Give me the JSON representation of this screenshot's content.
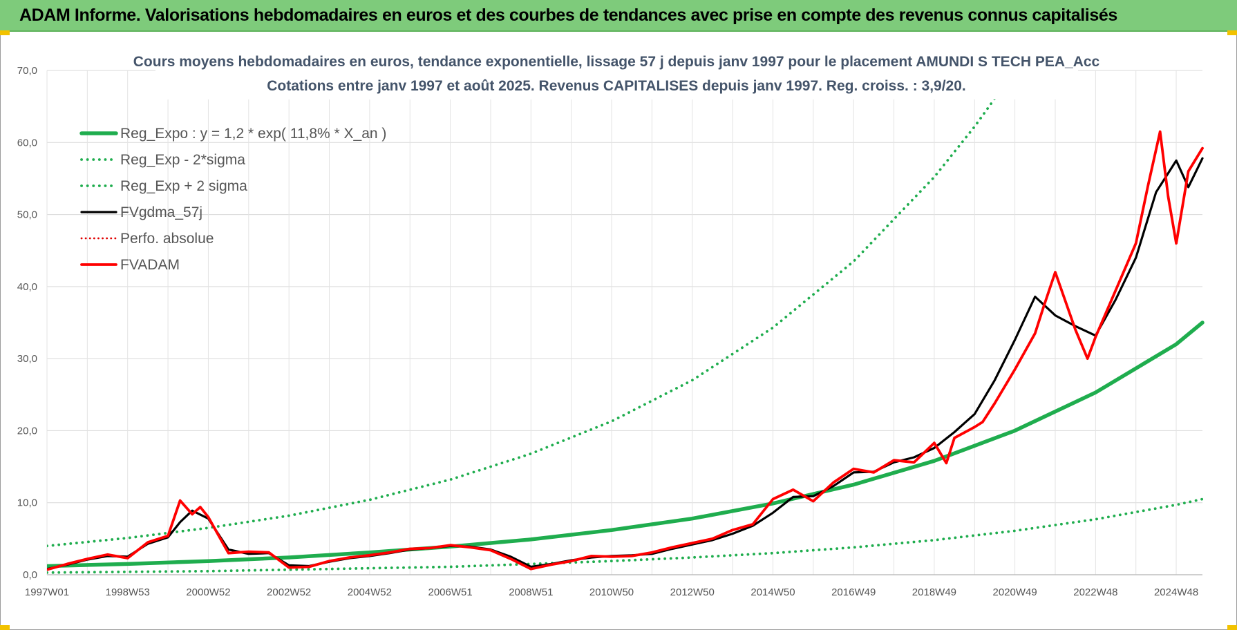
{
  "header": {
    "title": "ADAM Informe. Valorisations hebdomadaires en euros et des courbes de tendances avec prise en compte des revenus connus capitalisés"
  },
  "colors": {
    "banner": "#7ecb7b",
    "reg_expo": "#1fad4e",
    "sigma": "#1fad4e",
    "fvgdma": "#000000",
    "perfo": "#e00000",
    "fvadam": "#ff0000",
    "title": "#44546a"
  },
  "chart_data": {
    "type": "line",
    "title_line1": "Cours moyens hebdomadaires en euros, tendance exponentielle, lissage 57 j depuis janv 1997 pour le placement AMUNDI S TECH PEA_Acc",
    "title_line2": "Cotations entre janv 1997 et août 2025. Revenus CAPITALISES depuis janv 1997. Reg. croiss. : 3,9/20.",
    "xlabel": "",
    "ylabel": "",
    "ylim": [
      0,
      70
    ],
    "xlim": [
      1997.0,
      2025.65
    ],
    "grid": true,
    "legend_position": "top-left",
    "y_ticks": [
      "0,0",
      "10,0",
      "20,0",
      "30,0",
      "40,0",
      "50,0",
      "60,0",
      "70,0"
    ],
    "x_ticks": [
      {
        "label": "1997W01",
        "x": 1997.0
      },
      {
        "label": "1998W53",
        "x": 1999.0
      },
      {
        "label": "2000W52",
        "x": 2001.0
      },
      {
        "label": "2002W52",
        "x": 2003.0
      },
      {
        "label": "2004W52",
        "x": 2005.0
      },
      {
        "label": "2006W51",
        "x": 2007.0
      },
      {
        "label": "2008W51",
        "x": 2009.0
      },
      {
        "label": "2010W50",
        "x": 2011.0
      },
      {
        "label": "2012W50",
        "x": 2013.0
      },
      {
        "label": "2014W50",
        "x": 2015.0
      },
      {
        "label": "2016W49",
        "x": 2017.0
      },
      {
        "label": "2018W49",
        "x": 2019.0
      },
      {
        "label": "2020W49",
        "x": 2021.0
      },
      {
        "label": "2022W48",
        "x": 2023.0
      },
      {
        "label": "2024W48",
        "x": 2025.0
      }
    ],
    "series": [
      {
        "name": "Reg_Expo : y = 1,2 * exp( 11,8% *  X_an )",
        "style": "solid-thick",
        "x": [
          1997.0,
          1999.0,
          2001.0,
          2003.0,
          2005.0,
          2007.0,
          2009.0,
          2011.0,
          2013.0,
          2015.0,
          2017.0,
          2019.0,
          2021.0,
          2023.0,
          2025.0,
          2025.65
        ],
        "y": [
          1.2,
          1.5,
          1.9,
          2.4,
          3.1,
          3.9,
          4.9,
          6.2,
          7.8,
          9.9,
          12.5,
          15.8,
          20.0,
          25.3,
          32.0,
          35.0
        ]
      },
      {
        "name": "Reg_Exp - 2*sigma",
        "style": "dotted",
        "x": [
          1997.0,
          1999.0,
          2001.0,
          2003.0,
          2005.0,
          2007.0,
          2009.0,
          2011.0,
          2013.0,
          2015.0,
          2017.0,
          2019.0,
          2021.0,
          2023.0,
          2025.0,
          2025.65
        ],
        "y": [
          0.3,
          0.4,
          0.5,
          0.7,
          0.9,
          1.1,
          1.5,
          1.9,
          2.4,
          3.0,
          3.8,
          4.8,
          6.1,
          7.7,
          9.7,
          10.5
        ]
      },
      {
        "name": "Reg_Exp + 2 sigma",
        "style": "dotted",
        "x": [
          1997.0,
          1999.0,
          2001.0,
          2003.0,
          2005.0,
          2007.0,
          2009.0,
          2011.0,
          2013.0,
          2015.0,
          2017.0,
          2019.0,
          2020.0,
          2021.0,
          2021.2
        ],
        "y": [
          4.0,
          5.1,
          6.5,
          8.2,
          10.4,
          13.2,
          16.8,
          21.3,
          27.0,
          34.3,
          43.5,
          55.2,
          62.2,
          70.0,
          72.0
        ]
      },
      {
        "name": "FVgdma_57j",
        "style": "solid",
        "x": [
          1997.0,
          1997.5,
          1998.0,
          1998.5,
          1999.0,
          1999.5,
          2000.0,
          2000.3,
          2000.6,
          2001.0,
          2001.5,
          2002.0,
          2002.5,
          2003.0,
          2003.5,
          2004.0,
          2004.5,
          2005.0,
          2005.5,
          2006.0,
          2006.5,
          2007.0,
          2007.5,
          2008.0,
          2008.5,
          2009.0,
          2009.5,
          2010.0,
          2010.5,
          2011.0,
          2011.5,
          2012.0,
          2012.5,
          2013.0,
          2013.5,
          2014.0,
          2014.5,
          2015.0,
          2015.5,
          2016.0,
          2016.5,
          2017.0,
          2017.5,
          2018.0,
          2018.5,
          2019.0,
          2019.5,
          2020.0,
          2020.5,
          2021.0,
          2021.5,
          2022.0,
          2022.5,
          2023.0,
          2023.5,
          2024.0,
          2024.5,
          2025.0,
          2025.3,
          2025.65
        ],
        "y": [
          0.8,
          1.4,
          2.1,
          2.6,
          2.5,
          4.3,
          5.2,
          7.3,
          8.9,
          7.8,
          3.5,
          2.9,
          3.0,
          1.3,
          1.2,
          1.8,
          2.3,
          2.6,
          3.0,
          3.5,
          3.7,
          4.0,
          3.9,
          3.5,
          2.5,
          1.1,
          1.5,
          2.0,
          2.4,
          2.6,
          2.7,
          2.9,
          3.6,
          4.2,
          4.8,
          5.7,
          6.8,
          8.6,
          10.8,
          10.9,
          12.3,
          14.2,
          14.3,
          15.6,
          16.3,
          17.6,
          19.8,
          22.3,
          27.0,
          32.6,
          38.6,
          36.0,
          34.5,
          33.2,
          38.2,
          44.0,
          53.1,
          57.5,
          53.8,
          57.8
        ]
      },
      {
        "name": "Perfo. absolue",
        "style": "dotted-red",
        "x": [],
        "y": []
      },
      {
        "name": "FVADAM",
        "style": "solid-red-thick",
        "x": [
          1997.0,
          1997.5,
          1998.0,
          1998.5,
          1999.0,
          1999.5,
          2000.0,
          2000.3,
          2000.6,
          2000.8,
          2001.0,
          2001.5,
          2002.0,
          2002.5,
          2003.0,
          2003.5,
          2004.0,
          2004.5,
          2005.0,
          2005.5,
          2006.0,
          2006.5,
          2007.0,
          2007.5,
          2008.0,
          2008.5,
          2009.0,
          2009.5,
          2010.0,
          2010.5,
          2011.0,
          2011.5,
          2012.0,
          2012.5,
          2013.0,
          2013.5,
          2014.0,
          2014.5,
          2015.0,
          2015.5,
          2016.0,
          2016.5,
          2017.0,
          2017.5,
          2018.0,
          2018.5,
          2019.0,
          2019.3,
          2019.5,
          2020.0,
          2020.2,
          2020.5,
          2021.0,
          2021.5,
          2021.7,
          2022.0,
          2022.5,
          2022.8,
          2023.0,
          2023.5,
          2024.0,
          2024.3,
          2024.6,
          2024.8,
          2025.0,
          2025.3,
          2025.65
        ],
        "y": [
          0.7,
          1.5,
          2.2,
          2.8,
          2.3,
          4.5,
          5.4,
          10.3,
          8.4,
          9.4,
          8.0,
          3.0,
          3.2,
          3.1,
          1.0,
          1.1,
          1.9,
          2.4,
          2.7,
          3.1,
          3.6,
          3.7,
          4.1,
          3.8,
          3.4,
          2.2,
          0.8,
          1.4,
          1.9,
          2.6,
          2.5,
          2.6,
          3.1,
          3.8,
          4.4,
          5.0,
          6.2,
          7.0,
          10.5,
          11.8,
          10.2,
          12.8,
          14.7,
          14.2,
          15.9,
          15.6,
          18.3,
          15.5,
          19.0,
          20.5,
          21.2,
          23.8,
          28.5,
          33.5,
          37.0,
          42.0,
          34.0,
          30.0,
          33.0,
          39.5,
          46.0,
          54.0,
          61.5,
          52.5,
          46.0,
          56.0,
          59.2
        ]
      }
    ]
  }
}
